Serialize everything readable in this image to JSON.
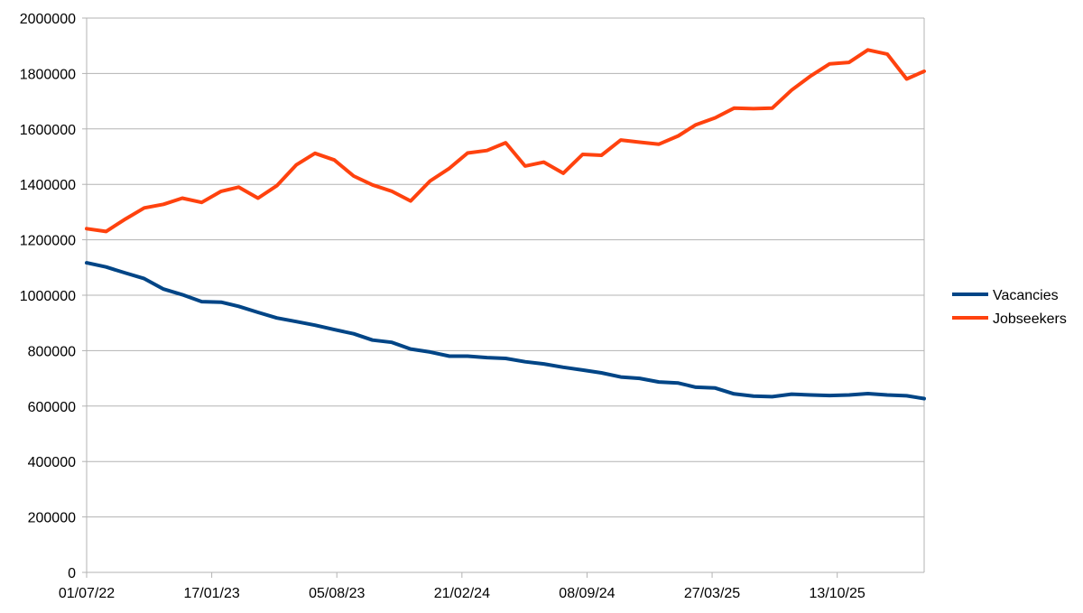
{
  "chart_data": {
    "type": "line",
    "title": "",
    "xlabel": "",
    "ylabel": "",
    "ylim": [
      0,
      2000000
    ],
    "y_ticks": [
      "0",
      "200000",
      "400000",
      "600000",
      "800000",
      "1000000",
      "1200000",
      "1400000",
      "1600000",
      "1800000",
      "2000000"
    ],
    "x_tick_labels": [
      "01/07/22",
      "17/01/23",
      "05/08/23",
      "21/02/24",
      "08/09/24",
      "27/03/25",
      "13/10/25"
    ],
    "x": [
      "01/07/22",
      "01/08/22",
      "01/09/22",
      "01/10/22",
      "01/11/22",
      "01/12/22",
      "01/01/23",
      "01/02/23",
      "01/03/23",
      "01/04/23",
      "01/05/23",
      "01/06/23",
      "01/07/23",
      "01/08/23",
      "01/09/23",
      "01/10/23",
      "01/11/23",
      "01/12/23",
      "01/01/24",
      "01/02/24",
      "01/03/24",
      "01/04/24",
      "01/05/24",
      "01/06/24",
      "01/07/24",
      "01/08/24",
      "01/09/24",
      "01/10/24",
      "01/11/24",
      "01/12/24",
      "01/01/25",
      "01/02/25",
      "01/03/25",
      "01/04/25",
      "01/05/25",
      "01/06/25",
      "01/07/25",
      "01/08/25",
      "01/09/25",
      "01/10/25",
      "01/11/25",
      "01/12/25",
      "01/01/26",
      "01/02/26",
      "01/03/26"
    ],
    "grid": true,
    "legend_position": "right",
    "series": [
      {
        "name": "Vacancies",
        "color": "#004586",
        "values": [
          1117000,
          1102000,
          1080000,
          1060000,
          1022000,
          1002000,
          977000,
          975000,
          960000,
          938000,
          918000,
          905000,
          892000,
          876000,
          861000,
          838000,
          830000,
          806000,
          795000,
          780000,
          780000,
          775000,
          772000,
          760000,
          752000,
          740000,
          730000,
          720000,
          705000,
          700000,
          687000,
          683000,
          668000,
          665000,
          644000,
          636000,
          634000,
          643000,
          640000,
          638000,
          640000,
          645000,
          640000,
          637000,
          627000
        ]
      },
      {
        "name": "Jobseekers",
        "color": "#ff420e",
        "values": [
          1240000,
          1230000,
          1275000,
          1315000,
          1328000,
          1350000,
          1335000,
          1375000,
          1390000,
          1350000,
          1395000,
          1470000,
          1512000,
          1488000,
          1430000,
          1398000,
          1375000,
          1340000,
          1412000,
          1458000,
          1513000,
          1522000,
          1550000,
          1466000,
          1480000,
          1440000,
          1508000,
          1505000,
          1560000,
          1552000,
          1545000,
          1575000,
          1615000,
          1640000,
          1675000,
          1673000,
          1675000,
          1740000,
          1792000,
          1835000,
          1840000,
          1885000,
          1870000,
          1780000,
          1808000
        ]
      }
    ]
  }
}
